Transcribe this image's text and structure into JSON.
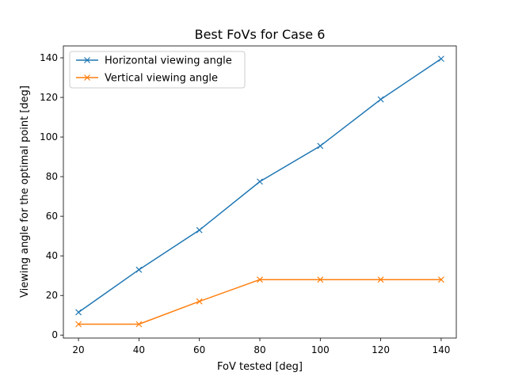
{
  "chart_data": {
    "type": "line",
    "title": "Best FoVs for Case 6",
    "xlabel": "FoV tested [deg]",
    "ylabel": "Viewing angle for the optimal point [deg]",
    "x": [
      20,
      40,
      60,
      80,
      100,
      120,
      140
    ],
    "xlim": [
      15,
      145
    ],
    "ylim": [
      -1.5,
      146
    ],
    "xticks": [
      20,
      40,
      60,
      80,
      100,
      120,
      140
    ],
    "yticks": [
      0,
      20,
      40,
      60,
      80,
      100,
      120,
      140
    ],
    "grid": false,
    "legend_position": "top-left",
    "marker": "x",
    "series": [
      {
        "name": "Horizontal viewing angle",
        "color": "#1f77b4",
        "values": [
          11.5,
          33,
          53,
          77.5,
          95.5,
          119,
          139.5
        ]
      },
      {
        "name": "Vertical viewing angle",
        "color": "#ff7f0e",
        "values": [
          5.5,
          5.5,
          17,
          28,
          28,
          28,
          28
        ]
      }
    ]
  }
}
